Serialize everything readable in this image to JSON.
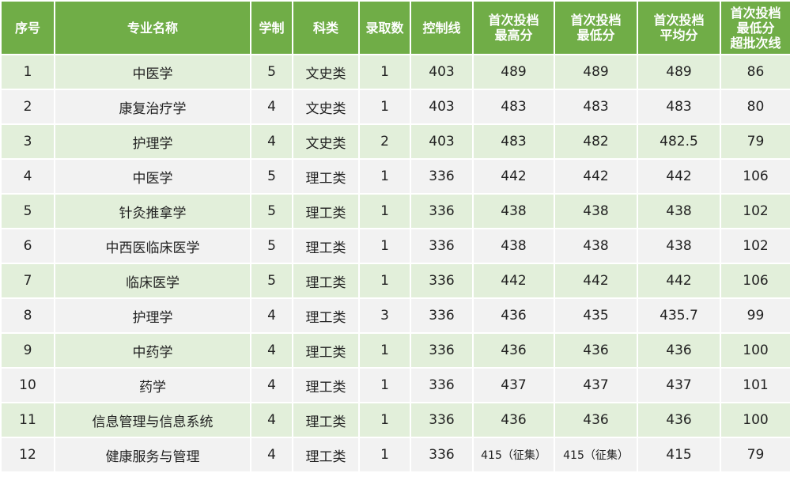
{
  "colors": {
    "header_bg": "#70ad47",
    "row_odd": "#e2efda",
    "row_even": "#f2f2f2"
  },
  "headers": [
    "序号",
    "专业名称",
    "学制",
    "科类",
    "录取数",
    "控制线",
    [
      "首次投档",
      "最高分"
    ],
    [
      "首次投档",
      "最低分"
    ],
    [
      "首次投档",
      "平均分"
    ],
    [
      "首次投档",
      "最低分",
      "超批次线"
    ]
  ],
  "rows": [
    [
      "1",
      "中医学",
      "5",
      "文史类",
      "1",
      "403",
      "489",
      "489",
      "489",
      "86"
    ],
    [
      "2",
      "康复治疗学",
      "4",
      "文史类",
      "1",
      "403",
      "483",
      "483",
      "483",
      "80"
    ],
    [
      "3",
      "护理学",
      "4",
      "文史类",
      "2",
      "403",
      "483",
      "482",
      "482.5",
      "79"
    ],
    [
      "4",
      "中医学",
      "5",
      "理工类",
      "1",
      "336",
      "442",
      "442",
      "442",
      "106"
    ],
    [
      "5",
      "针灸推拿学",
      "5",
      "理工类",
      "1",
      "336",
      "438",
      "438",
      "438",
      "102"
    ],
    [
      "6",
      "中西医临床医学",
      "5",
      "理工类",
      "1",
      "336",
      "438",
      "438",
      "438",
      "102"
    ],
    [
      "7",
      "临床医学",
      "5",
      "理工类",
      "1",
      "336",
      "442",
      "442",
      "442",
      "106"
    ],
    [
      "8",
      "护理学",
      "4",
      "理工类",
      "3",
      "336",
      "436",
      "435",
      "435.7",
      "99"
    ],
    [
      "9",
      "中药学",
      "4",
      "理工类",
      "1",
      "336",
      "436",
      "436",
      "436",
      "100"
    ],
    [
      "10",
      "药学",
      "4",
      "理工类",
      "1",
      "336",
      "437",
      "437",
      "437",
      "101"
    ],
    [
      "11",
      "信息管理与信息系统",
      "4",
      "理工类",
      "1",
      "336",
      "436",
      "436",
      "436",
      "100"
    ],
    [
      "12",
      "健康服务与管理",
      "4",
      "理工类",
      "1",
      "336",
      "415（征集）",
      "415（征集）",
      "415",
      "79"
    ]
  ]
}
